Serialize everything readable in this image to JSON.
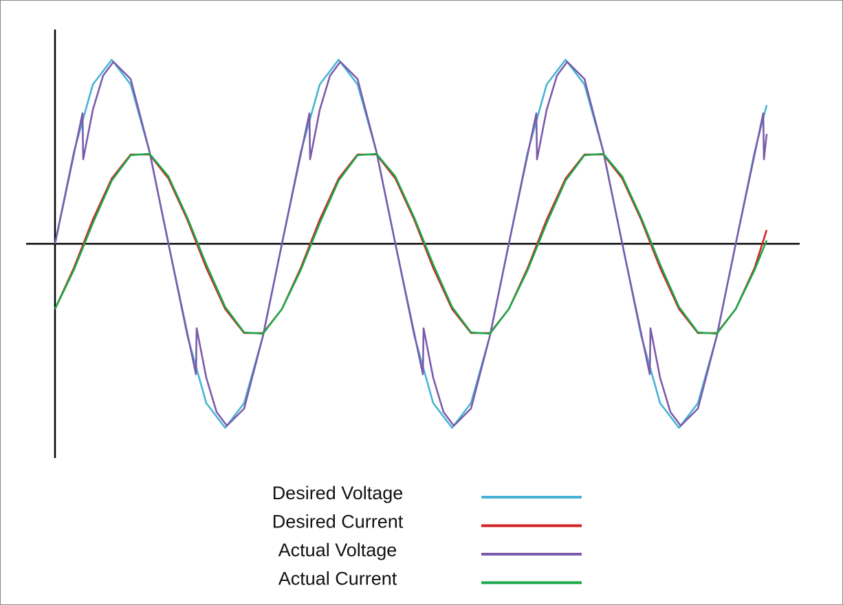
{
  "chart_data": {
    "type": "line",
    "xlim": [
      -42,
      1083
    ],
    "ylim": [
      -312,
      312
    ],
    "x": [
      0,
      27.5,
      55,
      82.5,
      110,
      137.5,
      165,
      192.5,
      220,
      247.5,
      275,
      302.5,
      330,
      357.5,
      385,
      412.5,
      440,
      467.5,
      495,
      522.5,
      550,
      577.5,
      605,
      632.5,
      660,
      687.5,
      715,
      742.5,
      770,
      797.5,
      825,
      852.5,
      880,
      907.5,
      935,
      962.5,
      990,
      1017.5,
      1035
    ],
    "series": [
      {
        "name": "Desired Voltage",
        "color": "#45b4d4",
        "values": [
          0,
          134,
          232,
          268,
          232,
          134,
          0,
          -134,
          -232,
          -268,
          -232,
          -134,
          0,
          134,
          232,
          268,
          232,
          134,
          0,
          -134,
          -232,
          -268,
          -232,
          -134,
          0,
          134,
          232,
          268,
          232,
          134,
          0,
          -134,
          -232,
          -268,
          -232,
          -134,
          0,
          134,
          202
        ]
      },
      {
        "name": "Desired Current",
        "color": "#d42020",
        "values": [
          -95,
          -35,
          35,
          95,
          130,
          130,
          95,
          35,
          -35,
          -95,
          -130,
          -130,
          -95,
          -35,
          35,
          95,
          130,
          130,
          95,
          35,
          -35,
          -95,
          -130,
          -130,
          -95,
          -35,
          35,
          95,
          130,
          130,
          95,
          35,
          -35,
          -95,
          -130,
          -130,
          -95,
          -35,
          20
        ]
      },
      {
        "name": "Actual Voltage",
        "color": "#7b5aaa",
        "x": [
          0,
          20,
          40,
          41,
          55,
          70,
          85,
          110,
          137.5,
          165,
          185,
          205,
          206,
          220,
          235,
          250,
          275,
          302.5,
          330,
          350,
          370,
          371,
          385,
          400,
          415,
          440,
          467.5,
          495,
          515,
          535,
          536,
          550,
          565,
          580,
          605,
          632.5,
          660,
          680,
          700,
          701,
          715,
          730,
          745,
          770,
          797.5,
          825,
          845,
          865,
          866,
          880,
          895,
          910,
          935,
          962.5,
          990,
          1010,
          1030,
          1031,
          1035
        ],
        "values": [
          0,
          95,
          190,
          123,
          195,
          245,
          265,
          240,
          134,
          0,
          -95,
          -190,
          -123,
          -195,
          -245,
          -265,
          -240,
          -134,
          0,
          95,
          190,
          123,
          195,
          245,
          265,
          240,
          134,
          0,
          -95,
          -190,
          -123,
          -195,
          -245,
          -265,
          -240,
          -134,
          0,
          95,
          190,
          123,
          195,
          245,
          265,
          240,
          134,
          0,
          -95,
          -190,
          -123,
          -195,
          -245,
          -265,
          -240,
          -134,
          0,
          95,
          190,
          123,
          160
        ]
      },
      {
        "name": "Actual Current",
        "color": "#1aa84a",
        "values": [
          -95,
          -38,
          30,
          92,
          129,
          131,
          98,
          38,
          -30,
          -92,
          -129,
          -131,
          -95,
          -38,
          30,
          92,
          129,
          131,
          98,
          38,
          -30,
          -92,
          -129,
          -131,
          -95,
          -38,
          30,
          92,
          129,
          131,
          98,
          38,
          -30,
          -92,
          -129,
          -131,
          -95,
          -38,
          5
        ]
      }
    ],
    "legend": "bottom"
  }
}
